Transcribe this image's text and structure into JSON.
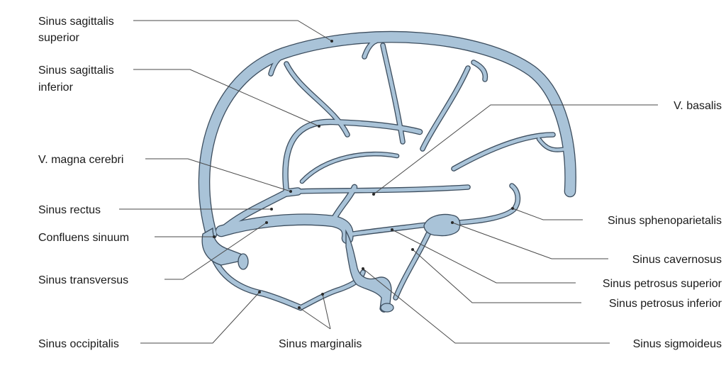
{
  "labels": {
    "sinus_sagittalis_superior": [
      "Sinus sagittalis",
      "superior"
    ],
    "sinus_sagittalis_inferior": [
      "Sinus sagittalis",
      "inferior"
    ],
    "v_magna_cerebri": "V. magna cerebri",
    "sinus_rectus": "Sinus rectus",
    "confluens_sinuum": "Confluens sinuum",
    "sinus_transversus": "Sinus transversus",
    "sinus_occipitalis": "Sinus occipitalis",
    "sinus_marginalis": "Sinus marginalis",
    "v_basalis": "V. basalis",
    "sinus_sphenoparietalis": "Sinus sphenoparietalis",
    "sinus_cavernosus": "Sinus cavernosus",
    "sinus_petrosus_superior": "Sinus petrosus superior",
    "sinus_petrosus_inferior": "Sinus petrosus inferior",
    "sinus_sigmoideus": "Sinus sigmoideus"
  },
  "colors": {
    "vein_fill": "#a9c3d8",
    "vein_outline": "#3c4d5e",
    "leader": "#4a4a4a",
    "text": "#1a1a1a"
  }
}
